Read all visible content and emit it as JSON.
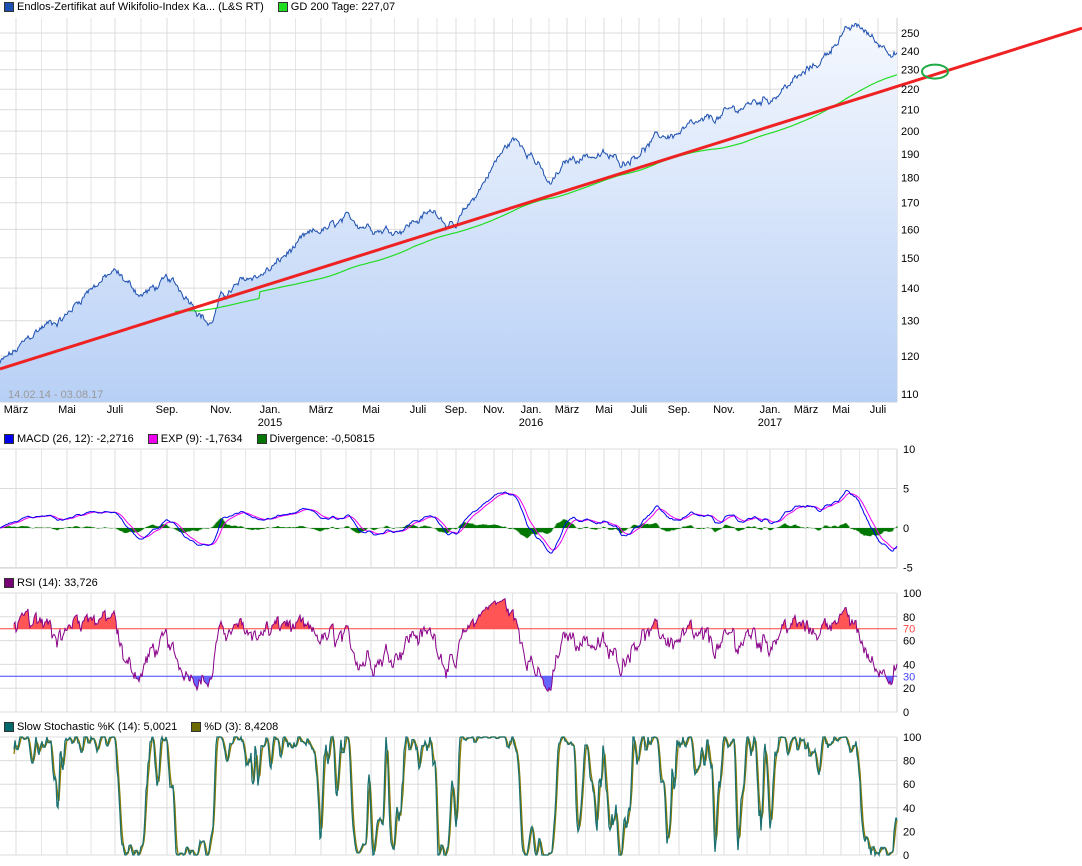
{
  "legend_main": {
    "series": [
      {
        "label": "Endlos-Zertifikat auf Wikifolio-Index Ka... (L&S RT)",
        "color": "#1c4fb0"
      },
      {
        "label": "GD 200 Tage: 227,07",
        "color": "#22dd22"
      }
    ]
  },
  "legend_macd": {
    "series": [
      {
        "label": "MACD (26, 12): -2,2716",
        "color": "#0000ee"
      },
      {
        "label": "EXP (9): -1,7634",
        "color": "#ee00ee"
      },
      {
        "label": "Divergence: -0,50815",
        "color": "#007700"
      }
    ]
  },
  "legend_rsi": {
    "series": [
      {
        "label": "RSI (14): 33,726",
        "color": "#770077"
      }
    ]
  },
  "legend_stoch": {
    "series": [
      {
        "label": "Slow Stochastic %K (14): 5,0021",
        "color": "#006a6a"
      },
      {
        "label": "%D (3): 8,4208",
        "color": "#6a6a00"
      }
    ]
  },
  "date_range_label": "14.02.14 - 03.08.17",
  "chart_data": [
    {
      "type": "line",
      "title": "",
      "yscale": "log",
      "ylim": [
        108.6,
        258.7
      ],
      "xlim": [
        "2014-02-14",
        "2017-08-03"
      ],
      "grid": true,
      "yticks": [
        250,
        240,
        230,
        220,
        210,
        200,
        190,
        180,
        170,
        160,
        150,
        140,
        130,
        120,
        110
      ],
      "xticks": [
        {
          "date": "2014-03-01",
          "label": "März",
          "year": ""
        },
        {
          "date": "2014-05-01",
          "label": "Mai",
          "year": ""
        },
        {
          "date": "2014-07-01",
          "label": "Juli",
          "year": ""
        },
        {
          "date": "2014-09-01",
          "label": "Sep.",
          "year": ""
        },
        {
          "date": "2014-11-01",
          "label": "Nov.",
          "year": ""
        },
        {
          "date": "2015-01-01",
          "label": "Jan.",
          "year": "2015"
        },
        {
          "date": "2015-03-01",
          "label": "März",
          "year": ""
        },
        {
          "date": "2015-05-01",
          "label": "Mai",
          "year": ""
        },
        {
          "date": "2015-07-01",
          "label": "Juli",
          "year": ""
        },
        {
          "date": "2015-09-01",
          "label": "Sep.",
          "year": ""
        },
        {
          "date": "2015-11-01",
          "label": "Nov.",
          "year": ""
        },
        {
          "date": "2016-01-01",
          "label": "Jan.",
          "year": "2016"
        },
        {
          "date": "2016-03-01",
          "label": "März",
          "year": ""
        },
        {
          "date": "2016-05-01",
          "label": "Mai",
          "year": ""
        },
        {
          "date": "2016-07-01",
          "label": "Juli",
          "year": ""
        },
        {
          "date": "2016-09-01",
          "label": "Sep.",
          "year": ""
        },
        {
          "date": "2016-11-01",
          "label": "Nov.",
          "year": ""
        },
        {
          "date": "2017-01-01",
          "label": "Jan.",
          "year": "2017"
        },
        {
          "date": "2017-03-01",
          "label": "März",
          "year": ""
        },
        {
          "date": "2017-05-01",
          "label": "Mai",
          "year": ""
        },
        {
          "date": "2017-07-01",
          "label": "Juli",
          "year": ""
        }
      ],
      "series": [
        {
          "name": "Endlos-Zertifikat auf Wikifolio-Index Ka... (L&S RT)",
          "color": "#1c4fb0",
          "points": [
            [
              "2014-02-14",
              118
            ],
            [
              "2014-03-01",
              121
            ],
            [
              "2014-04-01",
              128
            ],
            [
              "2014-05-01",
              132
            ],
            [
              "2014-06-01",
              141
            ],
            [
              "2014-07-01",
              145
            ],
            [
              "2014-08-01",
              138
            ],
            [
              "2014-09-01",
              142
            ],
            [
              "2014-10-01",
              136
            ],
            [
              "2014-10-20",
              129
            ],
            [
              "2014-11-01",
              137
            ],
            [
              "2014-12-01",
              142
            ],
            [
              "2015-01-01",
              146
            ],
            [
              "2015-02-01",
              154
            ],
            [
              "2015-03-01",
              159
            ],
            [
              "2015-04-01",
              162
            ],
            [
              "2015-05-01",
              162
            ],
            [
              "2015-06-01",
              160
            ],
            [
              "2015-07-01",
              164
            ],
            [
              "2015-08-01",
              167
            ],
            [
              "2015-09-01",
              160
            ],
            [
              "2015-10-01",
              172
            ],
            [
              "2015-11-01",
              186
            ],
            [
              "2015-12-01",
              196
            ],
            [
              "2016-01-01",
              192
            ],
            [
              "2016-02-01",
              176
            ],
            [
              "2016-03-01",
              186
            ],
            [
              "2016-04-01",
              190
            ],
            [
              "2016-05-01",
              189
            ],
            [
              "2016-06-01",
              186
            ],
            [
              "2016-07-01",
              192
            ],
            [
              "2016-08-01",
              197
            ],
            [
              "2016-09-01",
              199
            ],
            [
              "2016-10-01",
              202
            ],
            [
              "2016-11-01",
              207
            ],
            [
              "2016-12-01",
              212
            ],
            [
              "2017-01-01",
              216
            ],
            [
              "2017-02-01",
              223
            ],
            [
              "2017-03-01",
              228
            ],
            [
              "2017-04-01",
              236
            ],
            [
              "2017-05-01",
              250
            ],
            [
              "2017-06-01",
              253
            ],
            [
              "2017-07-01",
              244
            ],
            [
              "2017-08-03",
              241
            ]
          ]
        },
        {
          "name": "GD 200 Tage",
          "color": "#22dd22",
          "last_value": 227.07
        }
      ],
      "annotations": [
        {
          "type": "trendline",
          "color": "#ee2222",
          "points": [
            [
              "2014-02-14",
              116.5
            ],
            [
              "2017-08-03",
              221.4
            ]
          ],
          "extended": "right"
        },
        {
          "type": "ellipse",
          "color": "#22aa44",
          "center_value": 229
        }
      ]
    },
    {
      "type": "line",
      "title": "MACD",
      "ylim": [
        -5.2,
        10
      ],
      "yticks": [
        10,
        5,
        0,
        -5
      ],
      "series": [
        "MACD (26, 12)",
        "EXP (9)",
        "Divergence"
      ],
      "last_values": [
        -2.2716,
        -1.7634,
        -0.50815
      ]
    },
    {
      "type": "line",
      "title": "RSI",
      "ylim": [
        0,
        100
      ],
      "yticks": [
        100,
        80,
        60,
        40,
        20,
        0
      ],
      "levels": [
        {
          "value": 70,
          "color": "#ff4444"
        },
        {
          "value": 30,
          "color": "#4444ff"
        }
      ],
      "last_value": 33.726
    },
    {
      "type": "line",
      "title": "Slow Stochastic",
      "ylim": [
        0,
        100
      ],
      "yticks": [
        100,
        80,
        60,
        40,
        20,
        0
      ],
      "last_values": [
        5.0021,
        8.4208
      ]
    }
  ]
}
